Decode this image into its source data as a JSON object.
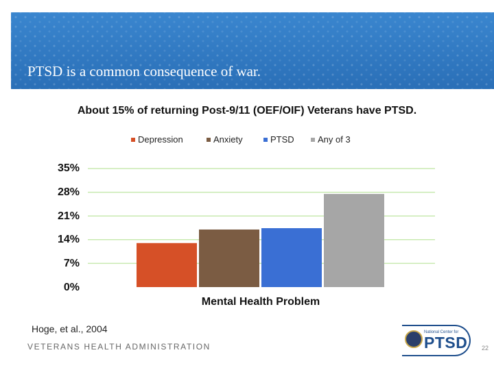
{
  "slide": {
    "title": "PTSD is a common consequence of war.",
    "citation": "Hoge, et al., 2004",
    "footer_org": "VETERANS HEALTH ADMINISTRATION",
    "logo_small_text": "National Center for",
    "logo_text": "PTSD",
    "page_number": "22"
  },
  "chart_data": {
    "type": "bar",
    "title": "About 15% of returning Post-9/11 (OEF/OIF) Veterans have PTSD.",
    "xlabel": "Mental Health Problem",
    "ylabel": "",
    "categories": [
      "Mental Health Problem"
    ],
    "series": [
      {
        "name": "Depression",
        "values": [
          13
        ],
        "color": "#d65027"
      },
      {
        "name": "Anxiety",
        "values": [
          17
        ],
        "color": "#7b5c43"
      },
      {
        "name": "PTSD",
        "values": [
          17.4
        ],
        "color": "#3a6fd4"
      },
      {
        "name": "Any of 3",
        "values": [
          27.5
        ],
        "color": "#a6a6a6"
      }
    ],
    "ylim": [
      0,
      35
    ],
    "yticks": [
      "0%",
      "7%",
      "14%",
      "21%",
      "28%",
      "35%"
    ],
    "ytick_values": [
      0,
      7,
      14,
      21,
      28,
      35
    ],
    "grid": true,
    "grid_color": "#c8eab0",
    "legend_position": "top"
  }
}
